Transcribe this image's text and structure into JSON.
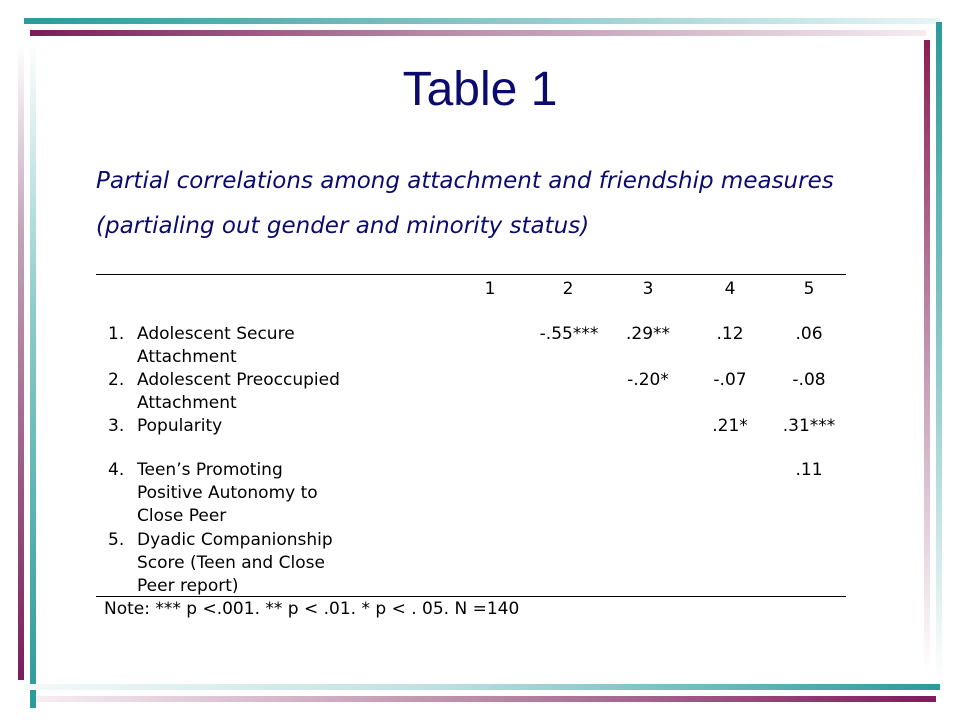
{
  "slide": {
    "title": "Table 1",
    "subtitle_line1": "Partial correlations among attachment and friendship measures",
    "subtitle_line2": "(partialing out gender and minority status)"
  },
  "table": {
    "column_headers": [
      "1",
      "2",
      "3",
      "4",
      "5"
    ],
    "rows": [
      {
        "num": "1.",
        "label_lines": [
          "Adolescent Secure",
          "Attachment"
        ],
        "values": [
          "",
          "-.55***",
          ".29**",
          ".12",
          ".06"
        ]
      },
      {
        "num": "2.",
        "label_lines": [
          "Adolescent Preoccupied",
          "Attachment"
        ],
        "values": [
          "",
          "",
          "-.20*",
          "-.07",
          "-.08"
        ]
      },
      {
        "num": "3.",
        "label_lines": [
          "Popularity"
        ],
        "values": [
          "",
          "",
          "",
          ".21*",
          ".31***"
        ]
      },
      {
        "num": "4.",
        "label_lines": [
          "Teen’s Promoting",
          "Positive Autonomy to",
          "Close Peer"
        ],
        "values": [
          "",
          "",
          "",
          "",
          ".11"
        ]
      },
      {
        "num": "5.",
        "label_lines": [
          "Dyadic Companionship",
          "Score (Teen and Close",
          "Peer report)"
        ],
        "values": [
          "",
          "",
          "",
          "",
          ""
        ]
      }
    ],
    "note": "Note: *** p <.001.  ** p < .01.  * p < . 05.  N =140"
  },
  "colors": {
    "title": "#0b0b6e",
    "teal_accent": "#2b9a9a",
    "plum_accent": "#7a1d5a"
  }
}
